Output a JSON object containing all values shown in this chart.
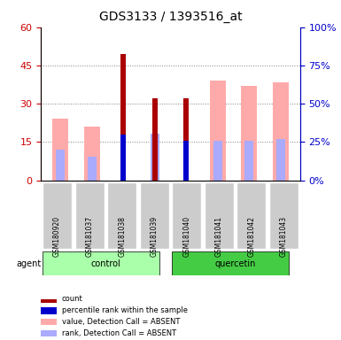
{
  "title": "GDS3133 / 1393516_at",
  "samples": [
    "GSM180920",
    "GSM181037",
    "GSM181038",
    "GSM181039",
    "GSM181040",
    "GSM181041",
    "GSM181042",
    "GSM181043"
  ],
  "groups": [
    "control",
    "control",
    "control",
    "control",
    "quercetin",
    "quercetin",
    "quercetin",
    "quercetin"
  ],
  "group_colors": {
    "control": "#aaffaa",
    "quercetin": "#44cc44"
  },
  "ylim_left": [
    0,
    60
  ],
  "ylim_right": [
    0,
    100
  ],
  "yticks_left": [
    0,
    15,
    30,
    45,
    60
  ],
  "yticks_right": [
    0,
    25,
    50,
    75,
    100
  ],
  "ytick_labels_left": [
    "0",
    "15",
    "30",
    "45",
    "60"
  ],
  "ytick_labels_right": [
    "0%",
    "25%",
    "50%",
    "75%",
    "100%"
  ],
  "value_absent": [
    24.0,
    21.0,
    0,
    0,
    0,
    39.0,
    37.0,
    38.5
  ],
  "rank_absent": [
    20.0,
    15.5,
    0,
    30.5,
    0,
    26.0,
    26.0,
    27.0
  ],
  "count_value": [
    0,
    0,
    49.5,
    32.0,
    32.0,
    0,
    0,
    0
  ],
  "count_rank": [
    0,
    0,
    30.0,
    0,
    25.5,
    0,
    0,
    0
  ],
  "bar_width": 0.5,
  "color_value_absent": "#ffaaaa",
  "color_rank_absent": "#aaaaff",
  "color_count": "#aa0000",
  "color_rank": "#0000cc",
  "left_axis_color": "#cc0000",
  "right_axis_color": "#0000cc"
}
